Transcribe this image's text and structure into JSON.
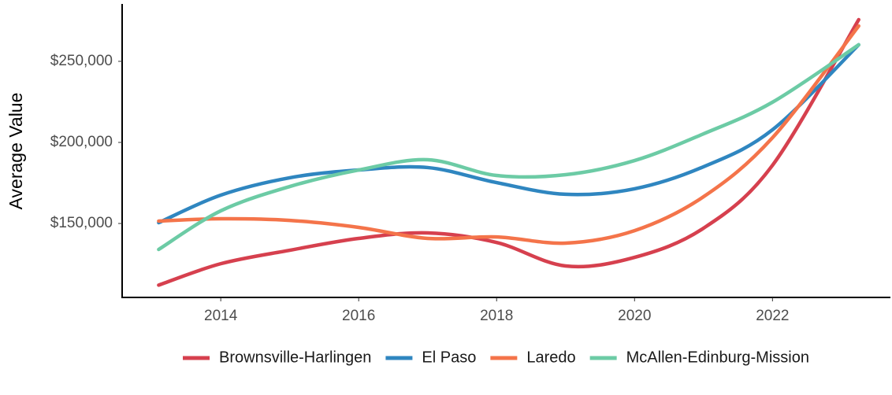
{
  "chart_data": {
    "type": "line",
    "y_label": "Average Value",
    "x": [
      2013.1,
      2014,
      2015,
      2016,
      2017,
      2018,
      2019,
      2020,
      2021,
      2022,
      2023.25
    ],
    "series": [
      {
        "name": "Brownsville-Harlingen",
        "color": "#d6404e",
        "values": [
          112000,
          125200,
          133500,
          140800,
          144200,
          138300,
          123800,
          129100,
          147100,
          185900,
          275700
        ]
      },
      {
        "name": "El Paso",
        "color": "#2f86c0",
        "values": [
          150500,
          167500,
          178200,
          183000,
          184500,
          175200,
          168000,
          171400,
          185000,
          207800,
          260200
        ]
      },
      {
        "name": "Laredo",
        "color": "#f4744a",
        "values": [
          151500,
          152900,
          151900,
          147600,
          140800,
          141700,
          137900,
          145600,
          166500,
          202900,
          271800
        ]
      },
      {
        "name": "McAllen-Edinburg-Mission",
        "color": "#6ccba5",
        "values": [
          134000,
          157800,
          172800,
          183000,
          189300,
          179600,
          180100,
          188800,
          205300,
          224800,
          260200
        ]
      }
    ],
    "xlim": [
      2012.57,
      2023.71
    ],
    "ylim": [
      104400,
      285400
    ],
    "xticks": [
      2014,
      2016,
      2018,
      2020,
      2022
    ],
    "yticks": [
      {
        "value": 150000,
        "label": "$150,000"
      },
      {
        "value": 200000,
        "label": "$200,000"
      },
      {
        "value": 250000,
        "label": "$250,000"
      }
    ],
    "legend": "bottom"
  }
}
